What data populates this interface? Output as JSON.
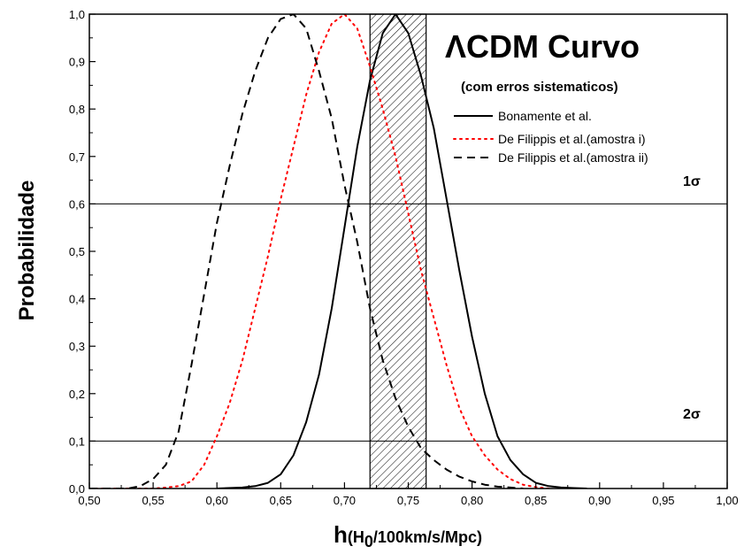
{
  "chart_data": {
    "type": "line",
    "title": "ΛCDM Curvo",
    "subtitle": "(com erros sistematicos)",
    "ylabel": "Probabilidade",
    "xlabel": {
      "main": "h",
      "open": "(H",
      "sub": "0",
      "rest": "/100km/s/Mpc)"
    },
    "xlim": [
      0.5,
      1.0
    ],
    "ylim": [
      0.0,
      1.0
    ],
    "xticks": [
      "0,50",
      "0,55",
      "0,60",
      "0,65",
      "0,70",
      "0,75",
      "0,80",
      "0,85",
      "0,90",
      "0,95",
      "1,00"
    ],
    "yticks": [
      "0,0",
      "0,1",
      "0,2",
      "0,3",
      "0,4",
      "0,5",
      "0,6",
      "0,7",
      "0,8",
      "0,9",
      "1,0"
    ],
    "hlines": [
      {
        "y": 0.6,
        "label": "1σ"
      },
      {
        "y": 0.1,
        "label": "2σ"
      }
    ],
    "band": {
      "x0": 0.72,
      "x1": 0.764,
      "pattern": "hatched"
    },
    "series": [
      {
        "name": "Bonamente et al.",
        "color": "#000000",
        "dash": "solid",
        "x": [
          0.6,
          0.62,
          0.63,
          0.64,
          0.65,
          0.66,
          0.67,
          0.68,
          0.69,
          0.7,
          0.71,
          0.72,
          0.73,
          0.74,
          0.75,
          0.76,
          0.77,
          0.78,
          0.79,
          0.8,
          0.81,
          0.82,
          0.83,
          0.84,
          0.85,
          0.86,
          0.87,
          0.88,
          0.89
        ],
        "y": [
          0.0,
          0.002,
          0.005,
          0.012,
          0.03,
          0.07,
          0.14,
          0.24,
          0.38,
          0.55,
          0.72,
          0.86,
          0.96,
          1.0,
          0.96,
          0.87,
          0.76,
          0.61,
          0.46,
          0.32,
          0.2,
          0.11,
          0.06,
          0.03,
          0.012,
          0.005,
          0.002,
          0.001,
          0.0
        ]
      },
      {
        "name": "De Filippis et al.(amostra i)",
        "color": "#ff0000",
        "dash": "dotted",
        "x": [
          0.5,
          0.55,
          0.56,
          0.57,
          0.58,
          0.59,
          0.6,
          0.61,
          0.62,
          0.63,
          0.64,
          0.65,
          0.66,
          0.67,
          0.68,
          0.69,
          0.7,
          0.71,
          0.72,
          0.73,
          0.74,
          0.75,
          0.76,
          0.77,
          0.78,
          0.79,
          0.8,
          0.81,
          0.82,
          0.83,
          0.84,
          0.85,
          0.86
        ],
        "y": [
          0.0,
          0.0,
          0.002,
          0.005,
          0.015,
          0.05,
          0.11,
          0.18,
          0.27,
          0.38,
          0.49,
          0.61,
          0.72,
          0.83,
          0.92,
          0.98,
          1.0,
          0.97,
          0.89,
          0.8,
          0.7,
          0.58,
          0.46,
          0.36,
          0.26,
          0.17,
          0.11,
          0.07,
          0.04,
          0.02,
          0.008,
          0.003,
          0.0
        ]
      },
      {
        "name": "De Filippis et al.(amostra ii)",
        "color": "#000000",
        "dash": "dashed",
        "x": [
          0.5,
          0.53,
          0.54,
          0.55,
          0.56,
          0.57,
          0.58,
          0.59,
          0.6,
          0.61,
          0.62,
          0.63,
          0.64,
          0.65,
          0.66,
          0.67,
          0.68,
          0.69,
          0.7,
          0.71,
          0.72,
          0.73,
          0.74,
          0.75,
          0.76,
          0.77,
          0.78,
          0.79,
          0.8,
          0.81,
          0.82,
          0.83,
          0.84
        ],
        "y": [
          0.0,
          0.0,
          0.005,
          0.02,
          0.05,
          0.12,
          0.26,
          0.41,
          0.56,
          0.68,
          0.79,
          0.88,
          0.95,
          0.99,
          1.0,
          0.97,
          0.88,
          0.78,
          0.64,
          0.52,
          0.38,
          0.27,
          0.19,
          0.13,
          0.085,
          0.06,
          0.04,
          0.025,
          0.015,
          0.008,
          0.004,
          0.002,
          0.0
        ]
      }
    ],
    "legend_position": "top-right"
  }
}
